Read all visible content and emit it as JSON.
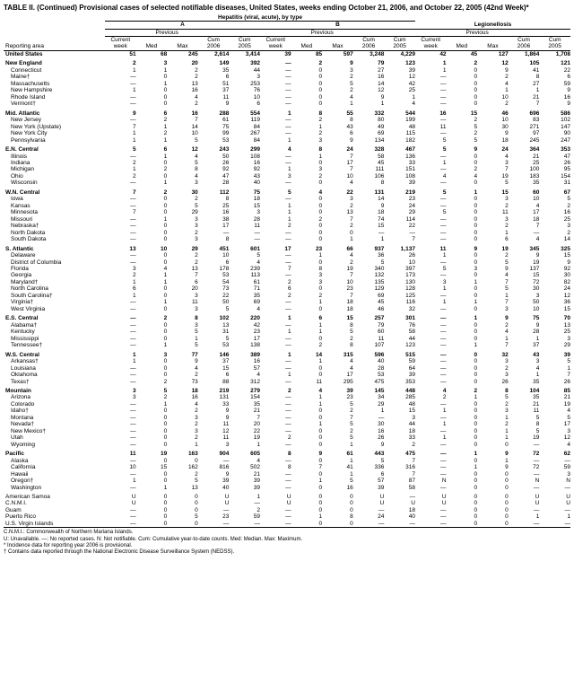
{
  "title": "TABLE II. (Continued) Provisional cases of selected notifiable diseases, United States, weeks ending October 21, 2006, and October 22, 2005 (42nd Week)*",
  "super_header": "Hepatitis (viral, acute), by type",
  "groups": [
    "A",
    "B",
    "Legionellosis"
  ],
  "prev_label": "Previous",
  "weeks_label": "52 weeks",
  "cols_sub": [
    "Current week",
    "Med",
    "Max",
    "Cum 2006",
    "Cum 2005"
  ],
  "area_label": "Reporting area",
  "footnotes": [
    "C.N.M.I.: Commonwealth of Northern Mariana Islands.",
    "U: Unavailable.    —: No reported cases.    N: Not notifiable.    Cum: Cumulative year-to-date counts.    Med: Median.    Max: Maximum.",
    "* Incidence data for reporting year 2006 is provisional.",
    "† Contains data reported through the National Electronic Disease Surveillance System (NEDSS)."
  ],
  "rows": [
    {
      "area": "United States",
      "b": 1,
      "v": [
        "51",
        "68",
        "245",
        "2,614",
        "3,414",
        "39",
        "85",
        "597",
        "3,248",
        "4,229",
        "42",
        "45",
        "127",
        "1,864",
        "1,708"
      ]
    },
    {
      "area": "New England",
      "b": 1,
      "g": 1,
      "v": [
        "2",
        "3",
        "20",
        "149",
        "392",
        "—",
        "2",
        "9",
        "79",
        "123",
        "1",
        "2",
        "12",
        "105",
        "121"
      ]
    },
    {
      "area": "Connecticut",
      "i": 1,
      "v": [
        "1",
        "1",
        "2",
        "35",
        "44",
        "—",
        "0",
        "3",
        "27",
        "39",
        "1",
        "0",
        "9",
        "41",
        "22"
      ]
    },
    {
      "area": "Maine†",
      "i": 1,
      "v": [
        "—",
        "0",
        "2",
        "6",
        "3",
        "—",
        "0",
        "2",
        "16",
        "12",
        "—",
        "0",
        "2",
        "8",
        "6"
      ]
    },
    {
      "area": "Massachusetts",
      "i": 1,
      "v": [
        "—",
        "1",
        "13",
        "51",
        "253",
        "—",
        "0",
        "5",
        "14",
        "42",
        "—",
        "0",
        "4",
        "27",
        "59"
      ]
    },
    {
      "area": "New Hampshire",
      "i": 1,
      "v": [
        "1",
        "0",
        "16",
        "37",
        "76",
        "—",
        "0",
        "2",
        "12",
        "25",
        "—",
        "0",
        "1",
        "1",
        "9"
      ]
    },
    {
      "area": "Rhode Island",
      "i": 1,
      "v": [
        "—",
        "0",
        "4",
        "11",
        "10",
        "—",
        "0",
        "4",
        "9",
        "1",
        "—",
        "0",
        "10",
        "21",
        "16"
      ]
    },
    {
      "area": "Vermont†",
      "i": 1,
      "v": [
        "—",
        "0",
        "2",
        "9",
        "6",
        "—",
        "0",
        "1",
        "1",
        "4",
        "—",
        "0",
        "2",
        "7",
        "9"
      ]
    },
    {
      "area": "Mid. Atlantic",
      "b": 1,
      "g": 1,
      "v": [
        "9",
        "6",
        "16",
        "288",
        "554",
        "1",
        "8",
        "55",
        "332",
        "544",
        "16",
        "15",
        "46",
        "696",
        "586"
      ]
    },
    {
      "area": "New Jersey",
      "i": 1,
      "v": [
        "—",
        "2",
        "7",
        "61",
        "119",
        "—",
        "2",
        "8",
        "80",
        "199",
        "—",
        "2",
        "10",
        "83",
        "102"
      ]
    },
    {
      "area": "New York (Upstate)",
      "i": 1,
      "v": [
        "7",
        "1",
        "14",
        "75",
        "84",
        "—",
        "1",
        "43",
        "49",
        "48",
        "11",
        "5",
        "30",
        "271",
        "147"
      ]
    },
    {
      "area": "New York City",
      "i": 1,
      "v": [
        "1",
        "2",
        "10",
        "99",
        "267",
        "—",
        "2",
        "6",
        "69",
        "115",
        "—",
        "2",
        "9",
        "97",
        "90"
      ]
    },
    {
      "area": "Pennsylvania",
      "i": 1,
      "v": [
        "1",
        "1",
        "5",
        "53",
        "84",
        "1",
        "3",
        "9",
        "134",
        "182",
        "5",
        "5",
        "18",
        "245",
        "247"
      ]
    },
    {
      "area": "E.N. Central",
      "b": 1,
      "g": 1,
      "v": [
        "5",
        "6",
        "12",
        "243",
        "299",
        "4",
        "8",
        "24",
        "328",
        "467",
        "5",
        "9",
        "24",
        "364",
        "353"
      ]
    },
    {
      "area": "Illinois",
      "i": 1,
      "v": [
        "—",
        "1",
        "4",
        "50",
        "108",
        "—",
        "1",
        "7",
        "58",
        "136",
        "—",
        "0",
        "4",
        "21",
        "47"
      ]
    },
    {
      "area": "Indiana",
      "i": 1,
      "v": [
        "2",
        "0",
        "5",
        "26",
        "16",
        "—",
        "0",
        "17",
        "45",
        "33",
        "1",
        "0",
        "3",
        "25",
        "26"
      ]
    },
    {
      "area": "Michigan",
      "i": 1,
      "v": [
        "1",
        "2",
        "8",
        "92",
        "92",
        "1",
        "3",
        "7",
        "111",
        "151",
        "—",
        "2",
        "7",
        "100",
        "95"
      ]
    },
    {
      "area": "Ohio",
      "i": 1,
      "v": [
        "2",
        "0",
        "4",
        "47",
        "43",
        "3",
        "2",
        "10",
        "106",
        "108",
        "4",
        "4",
        "19",
        "183",
        "154"
      ]
    },
    {
      "area": "Wisconsin",
      "i": 1,
      "v": [
        "—",
        "1",
        "3",
        "28",
        "40",
        "—",
        "0",
        "4",
        "8",
        "39",
        "—",
        "0",
        "5",
        "35",
        "31"
      ]
    },
    {
      "area": "W.N. Central",
      "b": 1,
      "g": 1,
      "v": [
        "7",
        "2",
        "30",
        "112",
        "75",
        "5",
        "4",
        "22",
        "131",
        "219",
        "5",
        "1",
        "15",
        "60",
        "67"
      ]
    },
    {
      "area": "Iowa",
      "i": 1,
      "v": [
        "—",
        "0",
        "2",
        "8",
        "18",
        "—",
        "0",
        "3",
        "14",
        "23",
        "—",
        "0",
        "3",
        "10",
        "5"
      ]
    },
    {
      "area": "Kansas",
      "i": 1,
      "v": [
        "—",
        "0",
        "5",
        "25",
        "15",
        "1",
        "0",
        "2",
        "9",
        "24",
        "—",
        "0",
        "2",
        "4",
        "2"
      ]
    },
    {
      "area": "Minnesota",
      "i": 1,
      "v": [
        "7",
        "0",
        "29",
        "16",
        "3",
        "1",
        "0",
        "13",
        "18",
        "29",
        "5",
        "0",
        "11",
        "17",
        "16"
      ]
    },
    {
      "area": "Missouri",
      "i": 1,
      "v": [
        "—",
        "1",
        "3",
        "38",
        "28",
        "1",
        "2",
        "7",
        "74",
        "114",
        "—",
        "0",
        "3",
        "18",
        "25"
      ]
    },
    {
      "area": "Nebraska†",
      "i": 1,
      "v": [
        "—",
        "0",
        "3",
        "17",
        "11",
        "2",
        "0",
        "2",
        "15",
        "22",
        "—",
        "0",
        "2",
        "7",
        "3"
      ]
    },
    {
      "area": "North Dakota",
      "i": 1,
      "v": [
        "—",
        "0",
        "2",
        "—",
        "—",
        "—",
        "0",
        "0",
        "—",
        "—",
        "—",
        "0",
        "1",
        "—",
        "2"
      ]
    },
    {
      "area": "South Dakota",
      "i": 1,
      "v": [
        "—",
        "0",
        "3",
        "8",
        "—",
        "—",
        "0",
        "1",
        "1",
        "7",
        "—",
        "0",
        "6",
        "4",
        "14"
      ]
    },
    {
      "area": "S. Atlantic",
      "b": 1,
      "g": 1,
      "v": [
        "13",
        "10",
        "29",
        "451",
        "601",
        "17",
        "23",
        "66",
        "937",
        "1,137",
        "11",
        "9",
        "19",
        "345",
        "325"
      ]
    },
    {
      "area": "Delaware",
      "i": 1,
      "v": [
        "—",
        "0",
        "2",
        "10",
        "5",
        "—",
        "1",
        "4",
        "36",
        "26",
        "1",
        "0",
        "2",
        "9",
        "15"
      ]
    },
    {
      "area": "District of Columbia",
      "i": 1,
      "v": [
        "—",
        "0",
        "2",
        "6",
        "4",
        "—",
        "0",
        "2",
        "5",
        "10",
        "—",
        "0",
        "5",
        "19",
        "9"
      ]
    },
    {
      "area": "Florida",
      "i": 1,
      "v": [
        "3",
        "4",
        "13",
        "178",
        "239",
        "7",
        "8",
        "19",
        "340",
        "397",
        "5",
        "3",
        "9",
        "137",
        "92"
      ]
    },
    {
      "area": "Georgia",
      "i": 1,
      "v": [
        "2",
        "1",
        "7",
        "53",
        "113",
        "—",
        "3",
        "7",
        "132",
        "173",
        "—",
        "0",
        "4",
        "15",
        "30"
      ]
    },
    {
      "area": "Maryland†",
      "i": 1,
      "v": [
        "1",
        "1",
        "6",
        "54",
        "61",
        "2",
        "3",
        "10",
        "135",
        "130",
        "3",
        "1",
        "7",
        "72",
        "82"
      ]
    },
    {
      "area": "North Carolina",
      "i": 1,
      "v": [
        "6",
        "0",
        "20",
        "73",
        "71",
        "6",
        "0",
        "23",
        "129",
        "128",
        "1",
        "0",
        "5",
        "30",
        "24"
      ]
    },
    {
      "area": "South Carolina†",
      "i": 1,
      "v": [
        "1",
        "0",
        "3",
        "22",
        "35",
        "2",
        "2",
        "7",
        "69",
        "125",
        "—",
        "0",
        "1",
        "3",
        "12"
      ]
    },
    {
      "area": "Virginia†",
      "i": 1,
      "v": [
        "—",
        "1",
        "11",
        "50",
        "69",
        "—",
        "1",
        "18",
        "45",
        "116",
        "1",
        "1",
        "7",
        "50",
        "36"
      ]
    },
    {
      "area": "West Virginia",
      "i": 1,
      "v": [
        "—",
        "0",
        "3",
        "5",
        "4",
        "—",
        "0",
        "18",
        "46",
        "32",
        "—",
        "0",
        "3",
        "10",
        "15"
      ]
    },
    {
      "area": "E.S. Central",
      "b": 1,
      "g": 1,
      "v": [
        "—",
        "2",
        "8",
        "102",
        "220",
        "1",
        "6",
        "15",
        "257",
        "301",
        "—",
        "1",
        "9",
        "75",
        "70"
      ]
    },
    {
      "area": "Alabama†",
      "i": 1,
      "v": [
        "—",
        "0",
        "3",
        "13",
        "42",
        "—",
        "1",
        "8",
        "79",
        "76",
        "—",
        "0",
        "2",
        "9",
        "13"
      ]
    },
    {
      "area": "Kentucky",
      "i": 1,
      "v": [
        "—",
        "0",
        "5",
        "31",
        "23",
        "1",
        "1",
        "5",
        "60",
        "58",
        "—",
        "0",
        "4",
        "28",
        "25"
      ]
    },
    {
      "area": "Mississippi",
      "i": 1,
      "v": [
        "—",
        "0",
        "1",
        "5",
        "17",
        "—",
        "0",
        "2",
        "11",
        "44",
        "—",
        "0",
        "1",
        "1",
        "3"
      ]
    },
    {
      "area": "Tennessee†",
      "i": 1,
      "v": [
        "—",
        "1",
        "5",
        "53",
        "138",
        "—",
        "2",
        "8",
        "107",
        "123",
        "—",
        "1",
        "7",
        "37",
        "29"
      ]
    },
    {
      "area": "W.S. Central",
      "b": 1,
      "g": 1,
      "v": [
        "1",
        "3",
        "77",
        "146",
        "389",
        "1",
        "14",
        "315",
        "596",
        "515",
        "—",
        "0",
        "32",
        "43",
        "39"
      ]
    },
    {
      "area": "Arkansas†",
      "i": 1,
      "v": [
        "1",
        "0",
        "9",
        "37",
        "16",
        "—",
        "1",
        "4",
        "40",
        "59",
        "—",
        "0",
        "3",
        "3",
        "5"
      ]
    },
    {
      "area": "Louisiana",
      "i": 1,
      "v": [
        "—",
        "0",
        "4",
        "15",
        "57",
        "—",
        "0",
        "4",
        "28",
        "64",
        "—",
        "0",
        "2",
        "4",
        "1"
      ]
    },
    {
      "area": "Oklahoma",
      "i": 1,
      "v": [
        "—",
        "0",
        "2",
        "6",
        "4",
        "1",
        "0",
        "17",
        "53",
        "39",
        "—",
        "0",
        "3",
        "1",
        "7"
      ]
    },
    {
      "area": "Texas†",
      "i": 1,
      "v": [
        "—",
        "2",
        "73",
        "88",
        "312",
        "—",
        "11",
        "295",
        "475",
        "353",
        "—",
        "0",
        "26",
        "35",
        "26"
      ]
    },
    {
      "area": "Mountain",
      "b": 1,
      "g": 1,
      "v": [
        "3",
        "5",
        "18",
        "219",
        "279",
        "2",
        "4",
        "39",
        "145",
        "448",
        "4",
        "2",
        "8",
        "104",
        "85"
      ]
    },
    {
      "area": "Arizona",
      "i": 1,
      "v": [
        "3",
        "2",
        "16",
        "131",
        "154",
        "—",
        "1",
        "23",
        "34",
        "285",
        "2",
        "1",
        "5",
        "35",
        "21"
      ]
    },
    {
      "area": "Colorado",
      "i": 1,
      "v": [
        "—",
        "1",
        "4",
        "33",
        "35",
        "—",
        "1",
        "5",
        "29",
        "48",
        "—",
        "0",
        "2",
        "21",
        "19"
      ]
    },
    {
      "area": "Idaho†",
      "i": 1,
      "v": [
        "—",
        "0",
        "2",
        "9",
        "21",
        "—",
        "0",
        "2",
        "1",
        "15",
        "1",
        "0",
        "3",
        "11",
        "4"
      ]
    },
    {
      "area": "Montana",
      "i": 1,
      "v": [
        "—",
        "0",
        "3",
        "9",
        "7",
        "—",
        "0",
        "7",
        "—",
        "3",
        "—",
        "0",
        "1",
        "5",
        "5"
      ]
    },
    {
      "area": "Nevada†",
      "i": 1,
      "v": [
        "—",
        "0",
        "2",
        "11",
        "20",
        "—",
        "1",
        "5",
        "30",
        "44",
        "1",
        "0",
        "2",
        "8",
        "17"
      ]
    },
    {
      "area": "New Mexico†",
      "i": 1,
      "v": [
        "—",
        "0",
        "3",
        "12",
        "22",
        "—",
        "0",
        "2",
        "16",
        "18",
        "—",
        "0",
        "1",
        "5",
        "3"
      ]
    },
    {
      "area": "Utah",
      "i": 1,
      "v": [
        "—",
        "0",
        "2",
        "11",
        "19",
        "2",
        "0",
        "5",
        "26",
        "33",
        "1",
        "0",
        "1",
        "19",
        "12"
      ]
    },
    {
      "area": "Wyoming",
      "i": 1,
      "v": [
        "—",
        "0",
        "1",
        "3",
        "1",
        "—",
        "0",
        "1",
        "9",
        "2",
        "—",
        "0",
        "0",
        "—",
        "4"
      ]
    },
    {
      "area": "Pacific",
      "b": 1,
      "g": 1,
      "v": [
        "11",
        "19",
        "163",
        "904",
        "605",
        "8",
        "9",
        "61",
        "443",
        "475",
        "—",
        "1",
        "9",
        "72",
        "62"
      ]
    },
    {
      "area": "Alaska",
      "i": 1,
      "v": [
        "—",
        "0",
        "0",
        "—",
        "4",
        "—",
        "0",
        "1",
        "5",
        "7",
        "—",
        "0",
        "1",
        "—",
        "—"
      ]
    },
    {
      "area": "California",
      "i": 1,
      "v": [
        "10",
        "15",
        "162",
        "816",
        "502",
        "8",
        "7",
        "41",
        "336",
        "316",
        "—",
        "1",
        "9",
        "72",
        "59"
      ]
    },
    {
      "area": "Hawaii",
      "i": 1,
      "v": [
        "—",
        "0",
        "2",
        "9",
        "21",
        "—",
        "0",
        "1",
        "6",
        "7",
        "—",
        "0",
        "0",
        "—",
        "3"
      ]
    },
    {
      "area": "Oregon†",
      "i": 1,
      "v": [
        "1",
        "0",
        "5",
        "39",
        "39",
        "—",
        "1",
        "5",
        "57",
        "87",
        "N",
        "0",
        "0",
        "N",
        "N"
      ]
    },
    {
      "area": "Washington",
      "i": 1,
      "v": [
        "—",
        "1",
        "13",
        "40",
        "39",
        "—",
        "0",
        "16",
        "39",
        "58",
        "—",
        "0",
        "0",
        "—",
        "—"
      ]
    },
    {
      "area": "American Samoa",
      "g": 1,
      "v": [
        "U",
        "0",
        "0",
        "U",
        "1",
        "U",
        "0",
        "0",
        "U",
        "—",
        "U",
        "0",
        "0",
        "U",
        "U"
      ]
    },
    {
      "area": "C.N.M.I.",
      "v": [
        "U",
        "0",
        "0",
        "U",
        "—",
        "U",
        "0",
        "0",
        "U",
        "U",
        "U",
        "0",
        "0",
        "U",
        "U"
      ]
    },
    {
      "area": "Guam",
      "v": [
        "—",
        "0",
        "0",
        "—",
        "2",
        "—",
        "0",
        "0",
        "—",
        "18",
        "—",
        "0",
        "0",
        "—",
        "—"
      ]
    },
    {
      "area": "Puerto Rico",
      "v": [
        "—",
        "0",
        "5",
        "23",
        "59",
        "—",
        "1",
        "8",
        "24",
        "40",
        "—",
        "0",
        "0",
        "1",
        "1"
      ]
    },
    {
      "area": "U.S. Virgin Islands",
      "v": [
        "—",
        "0",
        "0",
        "—",
        "—",
        "—",
        "0",
        "0",
        "—",
        "—",
        "—",
        "0",
        "0",
        "—",
        "—"
      ]
    }
  ]
}
